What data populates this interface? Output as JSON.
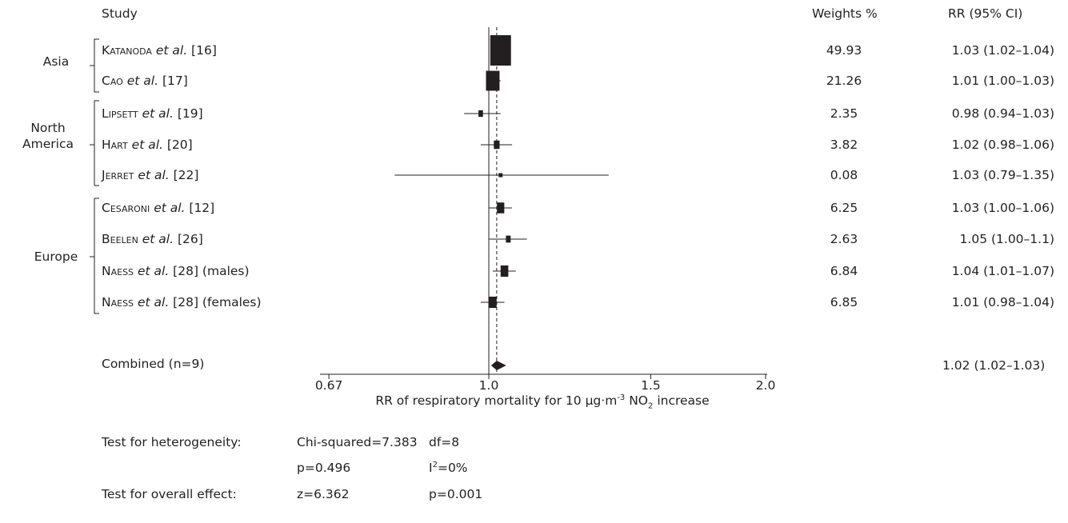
{
  "chart_data": {
    "type": "forest",
    "headers": {
      "study": "Study",
      "weights": "Weights %",
      "rr": "RR (95% CI)"
    },
    "groups": [
      {
        "name": "Asia",
        "rows": [
          0,
          1
        ]
      },
      {
        "name": "North America",
        "rows": [
          2,
          3,
          4
        ]
      },
      {
        "name": "Europe",
        "rows": [
          5,
          6,
          7,
          8
        ]
      }
    ],
    "studies": [
      {
        "author": "Katanoda",
        "suffix": " et al.",
        "ref": " [16]",
        "extra": "",
        "weight": "49.93",
        "weight_value": 49.93,
        "rr": 1.03,
        "lo": 1.02,
        "hi": 1.04,
        "rr_text": "1.03 (1.02–1.04)"
      },
      {
        "author": "Cao",
        "suffix": " et al.",
        "ref": " [17]",
        "extra": "",
        "weight": "21.26",
        "weight_value": 21.26,
        "rr": 1.01,
        "lo": 1.0,
        "hi": 1.03,
        "rr_text": "1.01 (1.00–1.03)"
      },
      {
        "author": "Lipsett",
        "suffix": " et al.",
        "ref": " [19]",
        "extra": "",
        "weight": "2.35",
        "weight_value": 2.35,
        "rr": 0.98,
        "lo": 0.94,
        "hi": 1.03,
        "rr_text": "0.98 (0.94–1.03)"
      },
      {
        "author": "Hart",
        "suffix": " et al.",
        "ref": " [20]",
        "extra": "",
        "weight": "3.82",
        "weight_value": 3.82,
        "rr": 1.02,
        "lo": 0.98,
        "hi": 1.06,
        "rr_text": "1.02 (0.98–1.06)"
      },
      {
        "author": "Jerret",
        "suffix": " et al.",
        "ref": " [22]",
        "extra": "",
        "weight": "0.08",
        "weight_value": 0.08,
        "rr": 1.03,
        "lo": 0.79,
        "hi": 1.35,
        "rr_text": "1.03 (0.79–1.35)"
      },
      {
        "author": "Cesaroni",
        "suffix": " et al.",
        "ref": " [12]",
        "extra": "",
        "weight": "6.25",
        "weight_value": 6.25,
        "rr": 1.03,
        "lo": 1.0,
        "hi": 1.06,
        "rr_text": "1.03 (1.00–1.06)"
      },
      {
        "author": "Beelen",
        "suffix": " et al.",
        "ref": " [26]",
        "extra": "",
        "weight": "2.63",
        "weight_value": 2.63,
        "rr": 1.05,
        "lo": 1.0,
        "hi": 1.1,
        "rr_text": "1.05 (1.00–1.1)"
      },
      {
        "author": "Naess",
        "suffix": " et al.",
        "ref": " [28]",
        "extra": " (males)",
        "weight": "6.84",
        "weight_value": 6.84,
        "rr": 1.04,
        "lo": 1.01,
        "hi": 1.07,
        "rr_text": "1.04 (1.01–1.07)"
      },
      {
        "author": "Naess",
        "suffix": " et al.",
        "ref": " [28]",
        "extra": " (females)",
        "weight": "6.85",
        "weight_value": 6.85,
        "rr": 1.01,
        "lo": 0.98,
        "hi": 1.04,
        "rr_text": "1.01 (0.98–1.04)"
      }
    ],
    "combined": {
      "label": "Combined (n=9)",
      "rr": 1.02,
      "lo": 1.02,
      "hi": 1.03,
      "rr_text": "1.02 (1.02–1.03)"
    },
    "x_axis": {
      "scale": "log",
      "range": [
        0.67,
        2.0
      ],
      "ticks": [
        0.67,
        1.0,
        1.5,
        2.0
      ],
      "tick_labels": [
        "0.67",
        "1.0",
        "1.5",
        "2.0"
      ],
      "label_before": "RR of respiratory mortality for 10 µg·m",
      "label_sup": "-3",
      "label_mid": " NO",
      "label_sub": "2",
      "label_after": " increase",
      "reference_line": 1.0,
      "pooled_line": 1.02
    },
    "stats": {
      "heterogeneity_label": "Test for heterogeneity:",
      "chi_squared": "Chi-squared=7.383",
      "df": "df=8",
      "p_het": "p=0.496",
      "i2_before": "I",
      "i2_sup": "2",
      "i2_after": "=0%",
      "overall_label": "Test for overall effect:",
      "z": "z=6.362",
      "p_overall": "p=0.001"
    }
  }
}
